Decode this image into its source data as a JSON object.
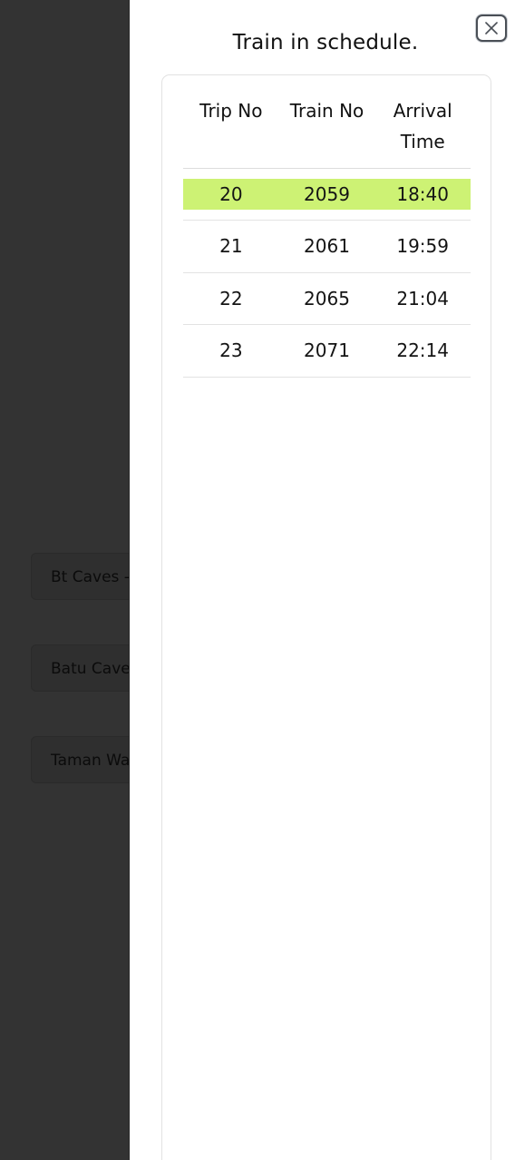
{
  "background": {
    "cards": [
      "Bt Caves - Sentul",
      "Batu Caves - Pulau Sebang",
      "Taman Wahyu"
    ]
  },
  "drawer": {
    "title": "Train in schedule.",
    "close_icon": "close-icon",
    "table": {
      "headers": [
        "Trip No",
        "Train No",
        "Arrival\nTime"
      ],
      "header_lines": {
        "arrival_line1": "Arrival",
        "arrival_line2": "Time"
      },
      "rows": [
        {
          "trip": "20",
          "train": "2059",
          "arrival": "18:40",
          "highlighted": true
        },
        {
          "trip": "21",
          "train": "2061",
          "arrival": "19:59",
          "highlighted": false
        },
        {
          "trip": "22",
          "train": "2065",
          "arrival": "21:04",
          "highlighted": false
        },
        {
          "trip": "23",
          "train": "2071",
          "arrival": "22:14",
          "highlighted": false
        }
      ]
    }
  },
  "colors": {
    "overlay": "#333333",
    "highlight": "#cdf274",
    "drawer_bg": "#ffffff"
  }
}
